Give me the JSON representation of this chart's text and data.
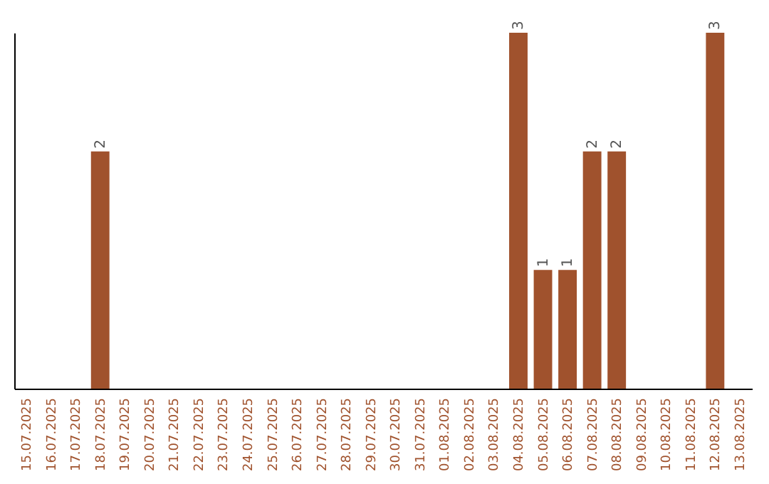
{
  "chart_data": {
    "type": "bar",
    "categories": [
      "15.07.2025",
      "16.07.2025",
      "17.07.2025",
      "18.07.2025",
      "19.07.2025",
      "20.07.2025",
      "21.07.2025",
      "22.07.2025",
      "23.07.2025",
      "24.07.2025",
      "25.07.2025",
      "26.07.2025",
      "27.07.2025",
      "28.07.2025",
      "29.07.2025",
      "30.07.2025",
      "31.07.2025",
      "01.08.2025",
      "02.08.2025",
      "03.08.2025",
      "04.08.2025",
      "05.08.2025",
      "06.08.2025",
      "07.08.2025",
      "08.08.2025",
      "09.08.2025",
      "10.08.2025",
      "11.08.2025",
      "12.08.2025",
      "13.08.2025"
    ],
    "values": [
      0,
      0,
      0,
      2,
      0,
      0,
      0,
      0,
      0,
      0,
      0,
      0,
      0,
      0,
      0,
      0,
      0,
      0,
      0,
      0,
      3,
      1,
      1,
      2,
      2,
      0,
      0,
      0,
      3,
      0
    ],
    "value_labels": [
      null,
      null,
      null,
      "2",
      null,
      null,
      null,
      null,
      null,
      null,
      null,
      null,
      null,
      null,
      null,
      null,
      null,
      null,
      null,
      null,
      "3",
      "1",
      "1",
      "2",
      "2",
      null,
      null,
      null,
      "3",
      null
    ],
    "color": "#a0522d",
    "grid": false
  }
}
